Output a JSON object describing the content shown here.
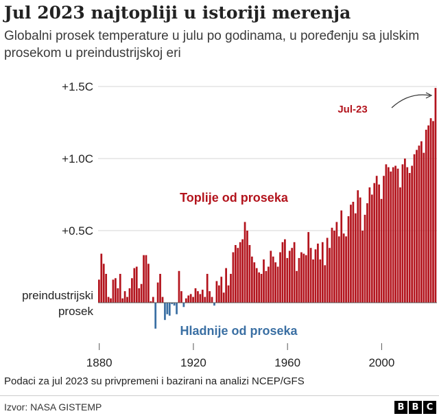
{
  "header": {
    "title": "Jul 2023 najtopliji u istoriji merenja",
    "subtitle": "Globalni prosek temperature u julu po godinama, u poređenju sa julskim prosekom u preindustrijskoj eri"
  },
  "footer": {
    "note": "Podaci za jul 2023 su privpremeni i bazirani na analizi NCEP/GFS",
    "source": "Izvor: NASA GISTEMP",
    "logo_letters": [
      "B",
      "B",
      "C"
    ]
  },
  "colors": {
    "warm": "#b3141d",
    "cold": "#3a6fa3",
    "grid": "#d6d6d6",
    "text": "#222222"
  },
  "chart_data": {
    "type": "bar",
    "x_label_year_start": 1880,
    "x_label_year_end": 2023,
    "x_ticks": [
      {
        "value": 1880,
        "label": "1880"
      },
      {
        "value": 1920,
        "label": "1920"
      },
      {
        "value": 1960,
        "label": "1960"
      },
      {
        "value": 2000,
        "label": "2000"
      }
    ],
    "y_ticks": [
      {
        "value": 1.5,
        "label": "+1.5C"
      },
      {
        "value": 1.0,
        "label": "+1.0C"
      },
      {
        "value": 0.5,
        "label": "+0.5C"
      }
    ],
    "baseline_label": [
      "preindustrijski",
      "prosek"
    ],
    "ylim": [
      -0.25,
      1.55
    ],
    "annotations": {
      "warm": "Toplije od proseka",
      "cold": "Hladnije od proseka",
      "highlight": "Jul-23"
    },
    "x": [
      1880,
      1881,
      1882,
      1883,
      1884,
      1885,
      1886,
      1887,
      1888,
      1889,
      1890,
      1891,
      1892,
      1893,
      1894,
      1895,
      1896,
      1897,
      1898,
      1899,
      1900,
      1901,
      1902,
      1903,
      1904,
      1905,
      1906,
      1907,
      1908,
      1909,
      1910,
      1911,
      1912,
      1913,
      1914,
      1915,
      1916,
      1917,
      1918,
      1919,
      1920,
      1921,
      1922,
      1923,
      1924,
      1925,
      1926,
      1927,
      1928,
      1929,
      1930,
      1931,
      1932,
      1933,
      1934,
      1935,
      1936,
      1937,
      1938,
      1939,
      1940,
      1941,
      1942,
      1943,
      1944,
      1945,
      1946,
      1947,
      1948,
      1949,
      1950,
      1951,
      1952,
      1953,
      1954,
      1955,
      1956,
      1957,
      1958,
      1959,
      1960,
      1961,
      1962,
      1963,
      1964,
      1965,
      1966,
      1967,
      1968,
      1969,
      1970,
      1971,
      1972,
      1973,
      1974,
      1975,
      1976,
      1977,
      1978,
      1979,
      1980,
      1981,
      1982,
      1983,
      1984,
      1985,
      1986,
      1987,
      1988,
      1989,
      1990,
      1991,
      1992,
      1993,
      1994,
      1995,
      1996,
      1997,
      1998,
      1999,
      2000,
      2001,
      2002,
      2003,
      2004,
      2005,
      2006,
      2007,
      2008,
      2009,
      2010,
      2011,
      2012,
      2013,
      2014,
      2015,
      2016,
      2017,
      2018,
      2019,
      2020,
      2021,
      2022,
      2023
    ],
    "values": [
      0.16,
      0.34,
      0.27,
      0.2,
      0.04,
      0.03,
      0.16,
      0.17,
      0.1,
      0.2,
      0.03,
      0.08,
      0.04,
      0.1,
      0.17,
      0.24,
      0.25,
      0.1,
      0.13,
      0.33,
      0.33,
      0.27,
      0.01,
      0.04,
      -0.18,
      0.14,
      0.2,
      0.04,
      -0.12,
      -0.08,
      -0.09,
      -0.01,
      -0.02,
      -0.08,
      0.22,
      0.08,
      -0.03,
      0.03,
      0.05,
      0.06,
      0.04,
      0.1,
      0.08,
      0.06,
      0.09,
      0.04,
      0.2,
      0.08,
      0.04,
      -0.02,
      0.15,
      0.12,
      0.18,
      0.07,
      0.24,
      0.12,
      0.2,
      0.35,
      0.4,
      0.38,
      0.42,
      0.44,
      0.56,
      0.5,
      0.4,
      0.32,
      0.28,
      0.24,
      0.21,
      0.2,
      0.3,
      0.22,
      0.25,
      0.36,
      0.32,
      0.28,
      0.25,
      0.35,
      0.42,
      0.44,
      0.31,
      0.36,
      0.38,
      0.42,
      0.22,
      0.31,
      0.35,
      0.34,
      0.33,
      0.49,
      0.38,
      0.3,
      0.37,
      0.41,
      0.3,
      0.42,
      0.26,
      0.45,
      0.38,
      0.52,
      0.5,
      0.56,
      0.46,
      0.64,
      0.48,
      0.46,
      0.6,
      0.68,
      0.7,
      0.62,
      0.78,
      0.73,
      0.5,
      0.61,
      0.69,
      0.8,
      0.75,
      0.83,
      0.88,
      0.82,
      0.72,
      0.88,
      0.96,
      0.94,
      0.91,
      0.94,
      0.95,
      0.93,
      0.8,
      0.96,
      1.0,
      0.94,
      0.9,
      0.95,
      1.03,
      1.06,
      1.09,
      1.12,
      1.04,
      1.2,
      1.23,
      1.28,
      1.26,
      1.49
    ]
  }
}
